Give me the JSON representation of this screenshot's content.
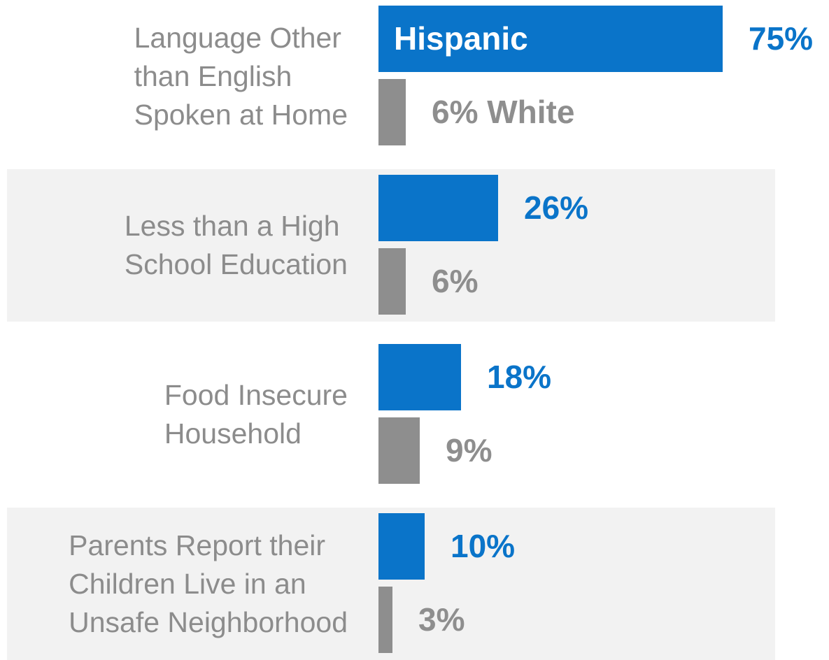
{
  "chart_data": {
    "type": "bar",
    "orientation": "horizontal",
    "categories": [
      "Language Other than English Spoken at Home",
      "Less than a High School Education",
      "Food Insecure Household",
      "Parents Report their Children Live in an Unsafe Neighborhood"
    ],
    "category_lines": [
      [
        "Language Other",
        "than English",
        "Spoken at Home"
      ],
      [
        "Less than a High",
        "School Education"
      ],
      [
        "Food Insecure",
        "Household"
      ],
      [
        "Parents Report their",
        "Children Live in an",
        "Unsafe Neighborhood"
      ]
    ],
    "series": [
      {
        "name": "Hispanic",
        "values": [
          75,
          26,
          18,
          10
        ],
        "labels": [
          "75%",
          "26%",
          "18%",
          "10%"
        ],
        "color": "#0a74c9"
      },
      {
        "name": "White",
        "values": [
          6,
          6,
          9,
          3
        ],
        "labels": [
          "6%",
          "6%",
          "9%",
          "3%"
        ],
        "color": "#8e8e8e"
      }
    ],
    "xlim": [
      0,
      100
    ],
    "unit": "%",
    "grid": false,
    "legend": "inline on first category",
    "band_color": "#f2f2f2"
  }
}
